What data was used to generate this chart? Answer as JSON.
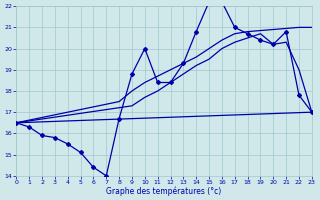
{
  "background_color": "#d0e8ea",
  "grid_color": "#a0c8cc",
  "line_color": "#0000aa",
  "xlabel": "Graphe des températures (°c)",
  "xlim": [
    0,
    23
  ],
  "ylim": [
    14,
    22
  ],
  "xticks": [
    0,
    1,
    2,
    3,
    4,
    5,
    6,
    7,
    8,
    9,
    10,
    11,
    12,
    13,
    14,
    15,
    16,
    17,
    18,
    19,
    20,
    21,
    22,
    23
  ],
  "yticks": [
    14,
    15,
    16,
    17,
    18,
    19,
    20,
    21,
    22
  ],
  "series1_x": [
    0,
    1,
    2,
    3,
    4,
    5,
    6,
    7,
    8,
    9,
    10,
    11,
    12,
    13,
    14,
    15,
    16,
    17,
    18,
    19,
    20,
    21,
    22,
    23
  ],
  "series1_y": [
    16.5,
    16.3,
    15.9,
    15.8,
    15.5,
    15.1,
    14.4,
    14.0,
    16.7,
    18.8,
    20.0,
    18.4,
    18.4,
    19.3,
    20.8,
    22.2,
    22.2,
    21.0,
    20.7,
    20.4,
    20.2,
    20.8,
    17.8,
    17.0
  ],
  "series2_x": [
    0,
    23
  ],
  "series2_y": [
    16.5,
    17.0
  ],
  "series3_x": [
    0,
    9,
    10,
    11,
    12,
    13,
    14,
    15,
    16,
    17,
    18,
    19,
    20,
    21,
    22,
    23
  ],
  "series3_y": [
    16.5,
    17.3,
    17.7,
    18.0,
    18.4,
    18.8,
    19.2,
    19.5,
    20.0,
    20.3,
    20.5,
    20.7,
    20.2,
    20.3,
    19.0,
    17.0
  ],
  "series4_x": [
    0,
    8,
    9,
    10,
    11,
    12,
    13,
    14,
    15,
    16,
    17,
    18,
    19,
    20,
    21,
    22,
    23
  ],
  "series4_y": [
    16.5,
    17.5,
    18.0,
    18.4,
    18.7,
    19.0,
    19.3,
    19.6,
    20.0,
    20.4,
    20.7,
    20.8,
    20.85,
    20.9,
    20.95,
    21.0,
    21.0
  ]
}
